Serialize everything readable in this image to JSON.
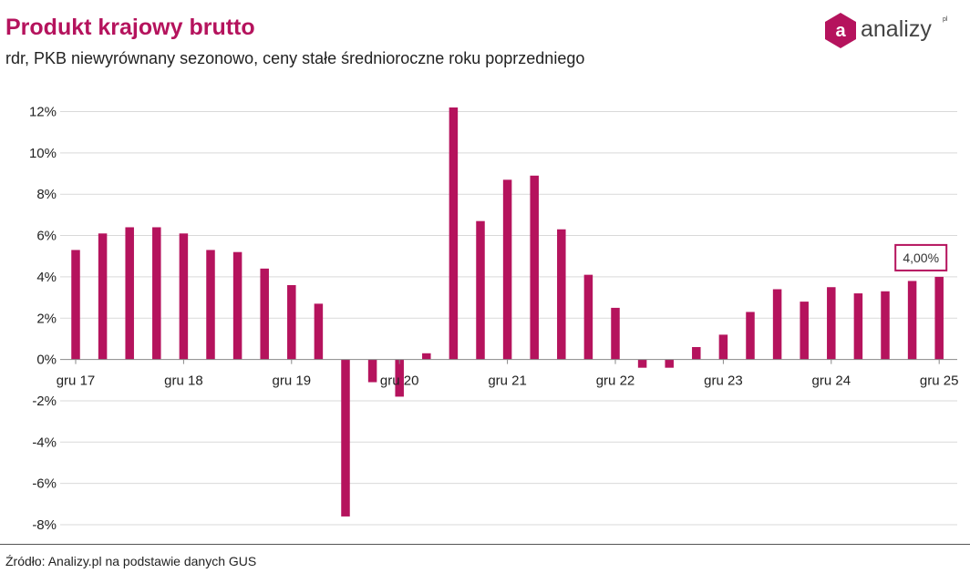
{
  "header": {
    "title": "Produkt krajowy brutto",
    "subtitle": "rdr, PKB niewyrównany sezonowo, ceny stałe średnioroczne roku poprzedniego"
  },
  "logo": {
    "text": "analizy",
    "sup": "pl",
    "badge": "a",
    "icon": "analizy-logo-icon"
  },
  "footer": {
    "source": "Źródło: Analizy.pl na podstawie danych GUS"
  },
  "colors": {
    "bar": "#b5135d",
    "grid": "#d9d9d9",
    "axis": "#888888"
  },
  "chart_data": {
    "type": "bar",
    "title": "Produkt krajowy brutto",
    "subtitle": "rdr, PKB niewyrównany sezonowo, ceny stałe średnioroczne roku poprzedniego",
    "xlabel": "",
    "ylabel": "",
    "ylim": [
      -8,
      12
    ],
    "grid": true,
    "yticks": [
      {
        "value": 12,
        "label": "12%"
      },
      {
        "value": 10,
        "label": "10%"
      },
      {
        "value": 8,
        "label": "8%"
      },
      {
        "value": 6,
        "label": "6%"
      },
      {
        "value": 4,
        "label": "4%"
      },
      {
        "value": 2,
        "label": "2%"
      },
      {
        "value": 0,
        "label": "0%"
      },
      {
        "value": -2,
        "label": "-2%"
      },
      {
        "value": -4,
        "label": "-4%"
      },
      {
        "value": -6,
        "label": "-6%"
      },
      {
        "value": -8,
        "label": "-8%"
      }
    ],
    "xticks": [
      {
        "index": 0,
        "label": "gru 17"
      },
      {
        "index": 4,
        "label": "gru 18"
      },
      {
        "index": 8,
        "label": "gru 19"
      },
      {
        "index": 12,
        "label": "gru 20"
      },
      {
        "index": 16,
        "label": "gru 21"
      },
      {
        "index": 20,
        "label": "gru 22"
      },
      {
        "index": 24,
        "label": "gru 23"
      },
      {
        "index": 28,
        "label": "gru 24"
      },
      {
        "index": 32,
        "label": "gru 25"
      }
    ],
    "values": [
      5.3,
      6.1,
      6.4,
      6.4,
      6.1,
      5.3,
      5.2,
      4.4,
      3.6,
      2.7,
      -7.6,
      -1.1,
      -1.8,
      0.3,
      12.2,
      6.7,
      8.7,
      8.9,
      6.3,
      4.1,
      2.5,
      -0.4,
      -0.4,
      0.6,
      1.2,
      2.3,
      3.4,
      2.8,
      3.5,
      3.2,
      3.3,
      3.8,
      4.0
    ],
    "annotation": {
      "index": 32,
      "label": "4,00%"
    }
  }
}
